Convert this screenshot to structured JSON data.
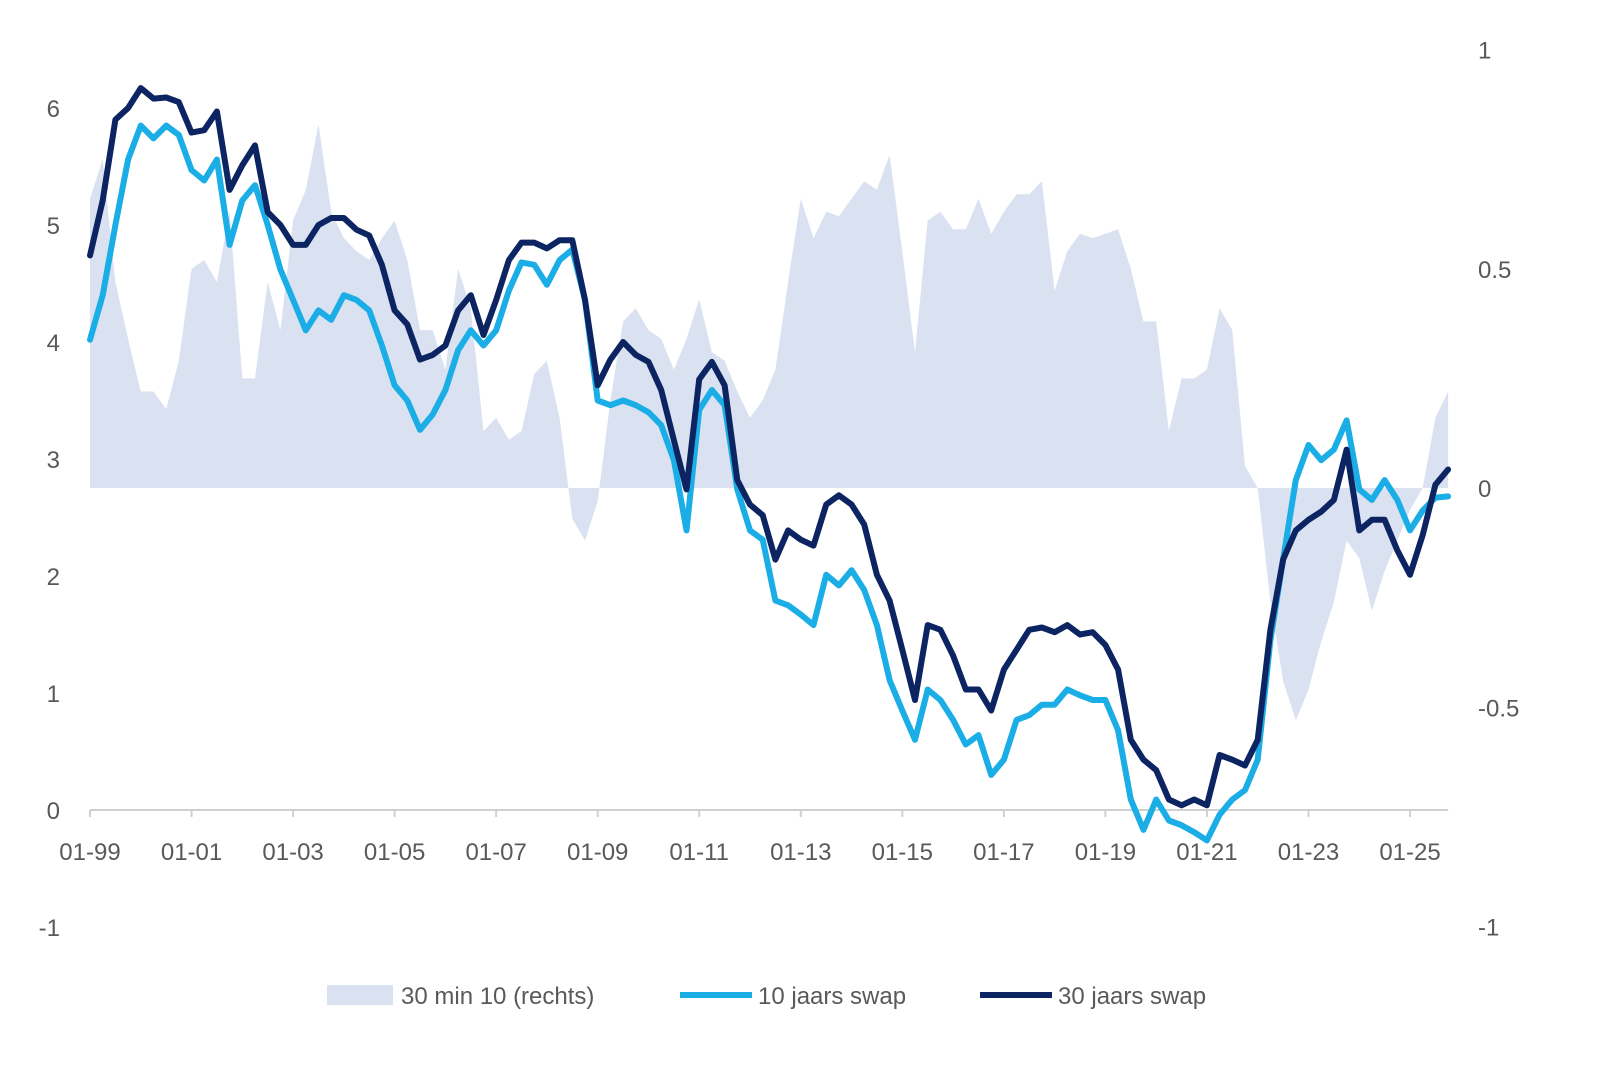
{
  "chart_data": {
    "type": "line",
    "title": "",
    "xlabel": "",
    "ylabel": "",
    "x_start": 1999.0,
    "x_step_years": 0.25,
    "x_tick_labels": [
      "01-99",
      "01-01",
      "01-03",
      "01-05",
      "01-07",
      "01-09",
      "01-11",
      "01-13",
      "01-15",
      "01-17",
      "01-19",
      "01-21",
      "01-23",
      "01-25"
    ],
    "x_tick_years": [
      1999,
      2001,
      2003,
      2005,
      2007,
      2009,
      2011,
      2013,
      2015,
      2017,
      2019,
      2021,
      2023,
      2025
    ],
    "left_axis": {
      "ylim": [
        -1,
        6.5
      ],
      "tick_labels": [
        "-1",
        "0",
        "1",
        "2",
        "3",
        "4",
        "5",
        "6"
      ],
      "tick_values": [
        -1,
        0,
        1,
        2,
        3,
        4,
        5,
        6
      ]
    },
    "right_axis": {
      "ylim": [
        -1,
        1
      ],
      "tick_labels": [
        "-1",
        "-0.5",
        "0",
        "0.5",
        "1"
      ],
      "tick_values": [
        -1,
        -0.5,
        0,
        0.5,
        1
      ]
    },
    "grid": false,
    "legend_placement": "bottom",
    "series": [
      {
        "name": "30 min 10 (rechts)",
        "type": "area",
        "axis": "right",
        "color": "#dae2f2",
        "values": [
          0.66,
          0.75,
          0.47,
          0.34,
          0.22,
          0.22,
          0.18,
          0.29,
          0.5,
          0.52,
          0.47,
          0.63,
          0.25,
          0.25,
          0.47,
          0.36,
          0.61,
          0.68,
          0.83,
          0.63,
          0.57,
          0.54,
          0.52,
          0.57,
          0.61,
          0.52,
          0.36,
          0.36,
          0.27,
          0.5,
          0.41,
          0.13,
          0.16,
          0.11,
          0.13,
          0.26,
          0.29,
          0.16,
          -0.07,
          -0.12,
          -0.03,
          0.2,
          0.38,
          0.41,
          0.36,
          0.34,
          0.27,
          0.34,
          0.43,
          0.31,
          0.29,
          0.22,
          0.16,
          0.2,
          0.27,
          0.47,
          0.66,
          0.57,
          0.63,
          0.62,
          0.66,
          0.7,
          0.68,
          0.76,
          0.54,
          0.31,
          0.61,
          0.63,
          0.59,
          0.59,
          0.66,
          0.58,
          0.63,
          0.67,
          0.67,
          0.7,
          0.45,
          0.54,
          0.58,
          0.57,
          0.58,
          0.59,
          0.5,
          0.38,
          0.38,
          0.13,
          0.25,
          0.25,
          0.27,
          0.41,
          0.36,
          0.05,
          0,
          -0.26,
          -0.44,
          -0.53,
          -0.46,
          -0.35,
          -0.26,
          -0.12,
          -0.16,
          -0.28,
          -0.19,
          -0.12,
          -0.05,
          0,
          0.16,
          0.22
        ]
      },
      {
        "name": "10 jaars swap",
        "type": "line",
        "axis": "left",
        "color": "#1aade6",
        "values": [
          4.02,
          4.4,
          5.0,
          5.56,
          5.85,
          5.74,
          5.85,
          5.77,
          5.47,
          5.38,
          5.56,
          4.83,
          5.21,
          5.34,
          5.0,
          4.62,
          4.36,
          4.1,
          4.27,
          4.19,
          4.4,
          4.36,
          4.27,
          3.97,
          3.63,
          3.5,
          3.25,
          3.38,
          3.59,
          3.93,
          4.1,
          3.97,
          4.1,
          4.44,
          4.68,
          4.66,
          4.49,
          4.7,
          4.79,
          4.36,
          3.5,
          3.46,
          3.5,
          3.46,
          3.4,
          3.29,
          2.99,
          2.39,
          3.42,
          3.59,
          3.46,
          2.74,
          2.39,
          2.31,
          1.79,
          1.75,
          1.67,
          1.58,
          2.01,
          1.92,
          2.05,
          1.88,
          1.58,
          1.11,
          0.85,
          0.6,
          1.03,
          0.94,
          0.77,
          0.56,
          0.64,
          0.3,
          0.43,
          0.77,
          0.81,
          0.9,
          0.9,
          1.03,
          0.98,
          0.94,
          0.94,
          0.68,
          0.09,
          -0.17,
          0.09,
          -0.09,
          -0.13,
          -0.19,
          -0.26,
          -0.04,
          0.09,
          0.17,
          0.43,
          1.45,
          2.14,
          2.82,
          3.12,
          2.99,
          3.08,
          3.33,
          2.74,
          2.65,
          2.82,
          2.65,
          2.39,
          2.56,
          2.67,
          2.68
        ]
      },
      {
        "name": "30 jaars swap",
        "type": "line",
        "axis": "left",
        "color": "#0c2461",
        "values": [
          4.74,
          5.21,
          5.9,
          6.0,
          6.17,
          6.08,
          6.09,
          6.05,
          5.79,
          5.81,
          5.97,
          5.3,
          5.51,
          5.68,
          5.11,
          5.0,
          4.83,
          4.83,
          5.0,
          5.06,
          5.06,
          4.96,
          4.91,
          4.66,
          4.27,
          4.15,
          3.85,
          3.89,
          3.97,
          4.27,
          4.4,
          4.06,
          4.36,
          4.7,
          4.85,
          4.85,
          4.8,
          4.87,
          4.87,
          4.36,
          3.63,
          3.85,
          4.0,
          3.89,
          3.83,
          3.59,
          3.16,
          2.74,
          3.68,
          3.83,
          3.63,
          2.82,
          2.61,
          2.52,
          2.14,
          2.39,
          2.31,
          2.26,
          2.61,
          2.69,
          2.61,
          2.44,
          2.01,
          1.79,
          1.37,
          0.94,
          1.58,
          1.54,
          1.32,
          1.03,
          1.03,
          0.85,
          1.2,
          1.37,
          1.54,
          1.56,
          1.52,
          1.58,
          1.5,
          1.52,
          1.41,
          1.2,
          0.6,
          0.43,
          0.34,
          0.09,
          0.04,
          0.09,
          0.04,
          0.47,
          0.43,
          0.38,
          0.6,
          1.54,
          2.14,
          2.39,
          2.48,
          2.55,
          2.65,
          3.08,
          2.39,
          2.48,
          2.48,
          2.22,
          2.01,
          2.35,
          2.78,
          2.91
        ]
      }
    ]
  },
  "colors": {
    "axis": "#d0d0d0",
    "text": "#595959"
  }
}
